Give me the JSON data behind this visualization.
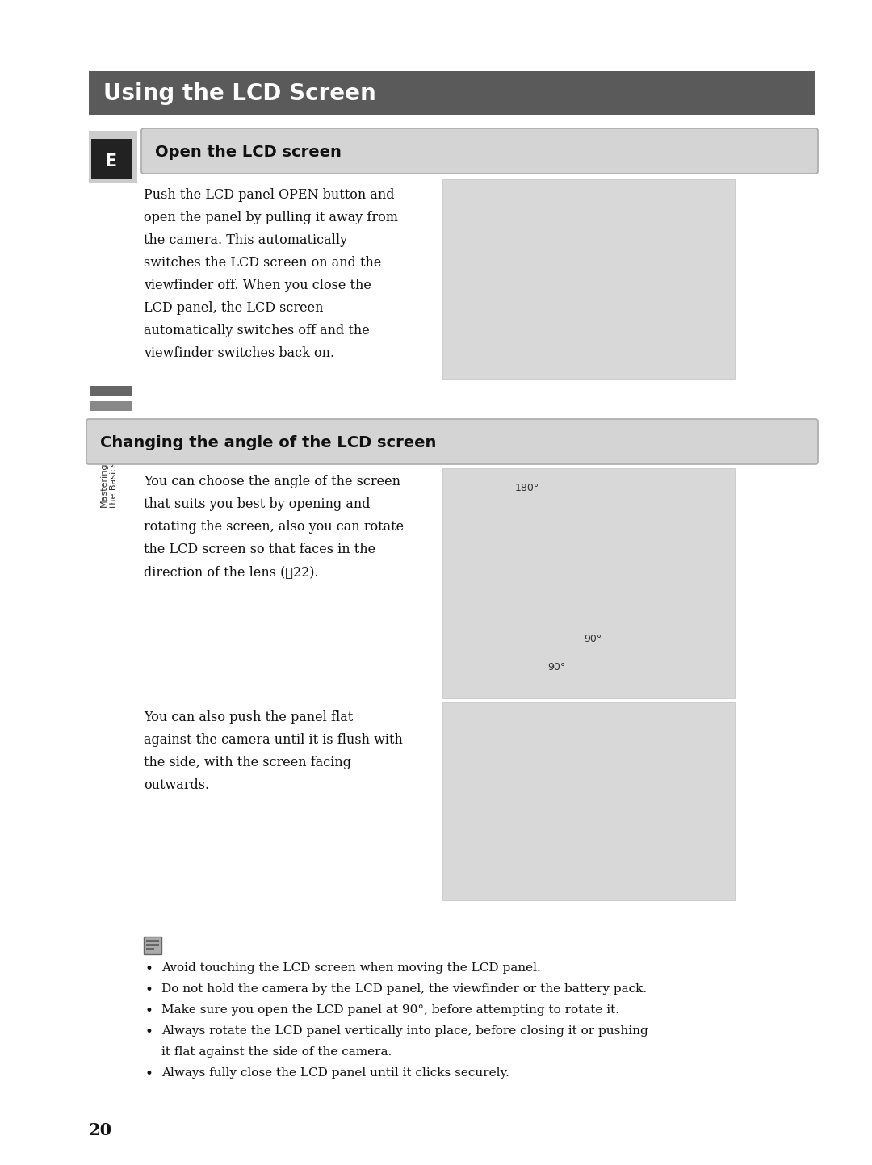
{
  "page_bg": "#ffffff",
  "title_bar_color": "#5a5a5a",
  "title_text": "Using the LCD Screen",
  "title_text_color": "#ffffff",
  "section1_header": "Open the LCD screen",
  "section1_header_bg": "#d4d4d4",
  "section2_header": "Changing the angle of the LCD screen",
  "section2_header_bg": "#d4d4d4",
  "section1_body": "Push the LCD panel OPEN button and\nopen the panel by pulling it away from\nthe camera. This automatically\nswitches the LCD screen on and the\nviewfinder off. When you close the\nLCD panel, the LCD screen\nautomatically switches off and the\nviewfinder switches back on.",
  "section2_body1": "You can choose the angle of the screen\nthat suits you best by opening and\nrotating the screen, also you can rotate\nthe LCD screen so that faces in the\ndirection of the lens (ᄑ22).",
  "section2_body2": "You can also push the panel flat\nagainst the camera until it is flush with\nthe side, with the screen facing\noutwards.",
  "note_bullets": [
    "Avoid touching the LCD screen when moving the LCD panel.",
    "Do not hold the camera by the LCD panel, the viewfinder or the battery pack.",
    "Make sure you open the LCD panel at 90°, before attempting to rotate it.",
    "Always rotate the LCD panel vertically into place, before closing it or pushing\nit flat against the side of the camera.",
    "Always fully close the LCD panel until it clicks securely."
  ],
  "page_number": "20",
  "img_box_color": "#d8d8d8",
  "img_box_border": "#c0c0c0",
  "note_icon_color": "#444444"
}
